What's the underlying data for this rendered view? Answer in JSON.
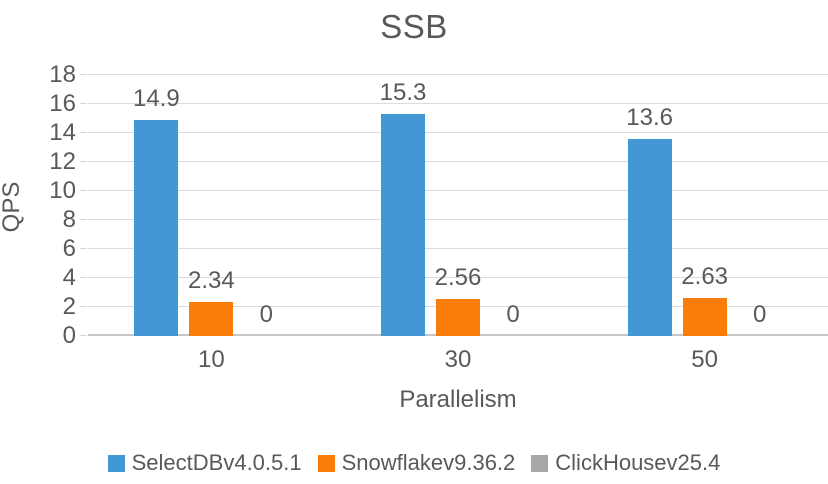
{
  "chart_data": {
    "type": "bar",
    "title": "SSB",
    "xlabel": "Parallelism",
    "ylabel": "QPS",
    "ylim": [
      0,
      18
    ],
    "ytick_step": 2,
    "grid": true,
    "legend_position": "bottom",
    "categories": [
      "10",
      "30",
      "50"
    ],
    "series": [
      {
        "name": "SelectDBv4.0.5.1",
        "color": "#4298D5",
        "values": [
          14.9,
          15.3,
          13.6
        ],
        "labels": [
          "14.9",
          "15.3",
          "13.6"
        ]
      },
      {
        "name": "Snowflakev9.36.2",
        "color": "#F87D09",
        "values": [
          2.34,
          2.56,
          2.63
        ],
        "labels": [
          "2.34",
          "2.56",
          "2.63"
        ]
      },
      {
        "name": "ClickHousev25.4",
        "color": "#A8A8A8",
        "values": [
          0,
          0,
          0
        ],
        "labels": [
          "0",
          "0",
          "0"
        ]
      }
    ]
  },
  "colors": {
    "grid": "#dbdbdb",
    "axis_line": "#c6c6c6",
    "text": "#595959"
  }
}
